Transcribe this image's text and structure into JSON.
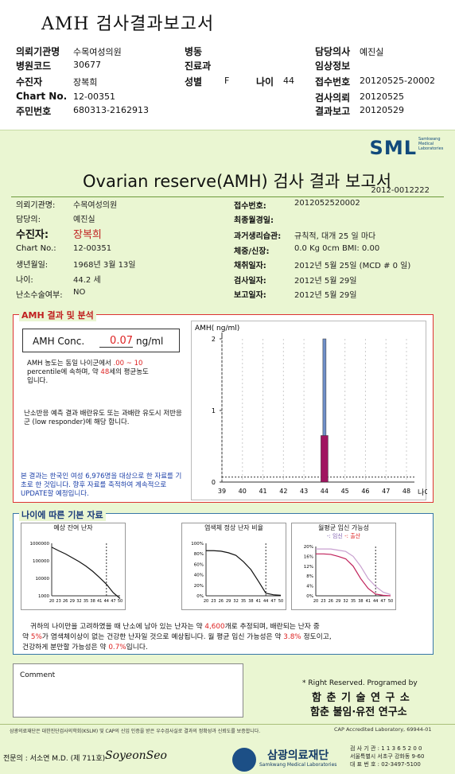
{
  "title": "AMH 검사결과보고서",
  "header": {
    "rows": [
      [
        {
          "l": "의뢰기관명",
          "v": "수목여성의원"
        },
        {
          "l": "병동",
          "v": ""
        },
        {
          "l": "담당의사",
          "v": "예진실"
        }
      ],
      [
        {
          "l": "병원코드",
          "v": "30677"
        },
        {
          "l": "진료과",
          "v": ""
        },
        {
          "l": "임상정보",
          "v": ""
        }
      ],
      [
        {
          "l": "수진자",
          "v": "장복희"
        },
        {
          "l": "성별",
          "v": "F"
        },
        {
          "l": "접수번호",
          "v": "20120525-20002"
        }
      ],
      [
        {
          "l": "Chart No.",
          "v": "12-00351"
        },
        {
          "l": "",
          "v": ""
        },
        {
          "l": "검사의뢰",
          "v": "20120525"
        }
      ],
      [
        {
          "l": "주민번호",
          "v": "680313-2162913"
        },
        {
          "l": "",
          "v": ""
        },
        {
          "l": "결과보고",
          "v": "20120529"
        }
      ]
    ],
    "age_label": "나이",
    "age_value": "44"
  },
  "report": {
    "logo": "SML",
    "logo_sub": "Samkwang Medical Laboratories",
    "title": "Ovarian reserve(AMH) 검사 결과 보고서",
    "doc_id": "2012-0012222",
    "left_fields": [
      {
        "l": "의뢰기관명:",
        "v": "수목여성의원"
      },
      {
        "l": "담당의:",
        "v": "예진실"
      },
      {
        "l": "수진자:",
        "v": "장복희"
      },
      {
        "l": "Chart No.:",
        "v": "12-00351"
      },
      {
        "l": "생년월일:",
        "v": "1968년 3월 13일"
      },
      {
        "l": "나이:",
        "v": "44.2 세"
      },
      {
        "l": "난소수술여부:",
        "v": "NO"
      }
    ],
    "right_fields": [
      {
        "l": "접수번호:",
        "v": "2012052520002"
      },
      {
        "l": "최종월경일:",
        "v": ""
      },
      {
        "l": "과거생리습관:",
        "v": "규칙적, 대개   25 일 마다"
      },
      {
        "l": "체중/신장:",
        "v": "0.0 Kg        0cm   BMI:   0.00"
      },
      {
        "l": "채취일자:",
        "v": "2012년 5월 25일   (MCD # 0 일)"
      },
      {
        "l": "검사일자:",
        "v": "2012년 5월 29일"
      },
      {
        "l": "보고일자:",
        "v": "2012년 5월 29일"
      }
    ]
  },
  "amh": {
    "section_title": "AMH 결과 및 분석",
    "conc_label": "AMH Conc.",
    "conc_value": "0.07",
    "conc_unit": "ng/ml",
    "p1_a": "AMH 농도는 동일 나이군에서",
    "p1_pct": ".00 ~  10",
    "p1_b": "percentile에 속하며, 약",
    "p1_age": "48",
    "p1_c": "세의 평균농도",
    "p1_d": "입니다.",
    "p2": "난소반응 예측 결과 배란유도 또는 과배란 유도시 저반응군 (low responder)에 해당 합니다.",
    "p3": "본 결과는 한국인 여성 6,976명을 대상으로 한 자료를 기초로 한 것입니다. 향후 자료를 축적하여 계속적으로 UPDATE할 예정입니다.",
    "chart_ylabel": "AMH( ng/ml)",
    "chart_xlabel": "나이"
  },
  "age_section": {
    "title": "나이에 따른 기본 자료",
    "chart_titles": [
      "예상 잔여 난자",
      "염색체 정상 난자 비율",
      "월평균 임신 가능성"
    ],
    "legend_a": "-: 임신",
    "legend_b": "-: 출산",
    "summary_a": "귀하의 나이만을 고려하였을 때 난소에 남아 있는 난자는 약",
    "summary_count": "4,600",
    "summary_b": "개로 추정되며, 배란되는 난자 중",
    "summary_c": "약",
    "summary_pct1": "5%",
    "summary_d": "가 염색체이상이 없는 건강한 난자일 것으로 예상됩니다. 월 평균 임신 가능성은 약",
    "summary_pct2": "3.8%",
    "summary_e": "정도이고,",
    "summary_f": "건강하게 분만할 가능성은 약",
    "summary_pct3": "0.7%",
    "summary_g": "입니다."
  },
  "footer": {
    "comment_label": "Comment",
    "rights": "* Right Reserved. Programed by",
    "org1": "함 춘  기 술  연 구 소",
    "org2": "함춘 불임·유전 연구소",
    "note": "삼광의료재단은 대한진단검사의학회(KSLM) 및 CAP의 신임 인증을 받은 우수검사실로 결과의 정확성과 신뢰도를 보증합니다.",
    "cap": "CAP  Accredited  Laboratory,  69944-01",
    "specialist": "전문의 : 서소연 M.D. (제 711호)",
    "signature": "SoyeonSeo",
    "foundation": "삼광의료재단",
    "foundation_en": "Samkwang Medical Laboratories",
    "contact1": "검 사 기 관 : 1 1 3 6 5 2 0 0",
    "contact2": "서울특별시 서초구 강화동 9-60",
    "contact3": "대 표 번 호 : 02-3497-5100"
  },
  "chart_data": [
    {
      "type": "bar",
      "ylabel": "AMH( ng/ml)",
      "xlabel": "나이",
      "x": [
        39,
        40,
        41,
        42,
        43,
        44,
        45,
        46,
        47,
        48
      ],
      "ylim": [
        0,
        2
      ],
      "yticks": [
        0,
        1,
        2
      ],
      "series": [
        {
          "name": "",
          "x": 44,
          "range": [
            0.6,
            2.0
          ],
          "color": "#6f8fc8"
        },
        {
          "name": "",
          "x": 44,
          "range": [
            0,
            0.65
          ],
          "color": "#a01560"
        }
      ],
      "reference_line": 0.07
    },
    {
      "type": "line",
      "title": "예상 잔여 난자",
      "y_log": true,
      "yticks": [
        "1000000",
        "100000",
        "10000",
        "1000"
      ],
      "x": [
        20,
        23,
        26,
        29,
        32,
        35,
        38,
        41,
        44,
        47,
        50
      ],
      "y": [
        600000,
        380000,
        250000,
        150000,
        90000,
        50000,
        25000,
        11000,
        4600,
        1500,
        700
      ]
    },
    {
      "type": "line",
      "title": "염색체 정상 난자 비율",
      "yticks": [
        "100%",
        "80%",
        "60%",
        "40%",
        "20%",
        "0%"
      ],
      "x": [
        20,
        23,
        26,
        29,
        32,
        35,
        38,
        41,
        44,
        47,
        50
      ],
      "y": [
        86,
        86,
        85,
        82,
        77,
        65,
        50,
        28,
        5,
        2,
        1
      ]
    },
    {
      "type": "line",
      "title": "월평균 임신 가능성",
      "yticks": [
        "20%",
        "16%",
        "12%",
        "8%",
        "4%",
        "0%"
      ],
      "x": [
        20,
        23,
        26,
        29,
        32,
        35,
        38,
        41,
        44,
        47,
        50
      ],
      "series": [
        {
          "name": "임신",
          "y": [
            19,
            19,
            19,
            18.5,
            18,
            16,
            12,
            7,
            3.8,
            1.5,
            0.5
          ],
          "color": "#c8a0d0"
        },
        {
          "name": "출산",
          "y": [
            17,
            17,
            16.8,
            16,
            15,
            12,
            7,
            3,
            0.7,
            0.2,
            0
          ],
          "color": "#c0205a"
        }
      ]
    }
  ]
}
